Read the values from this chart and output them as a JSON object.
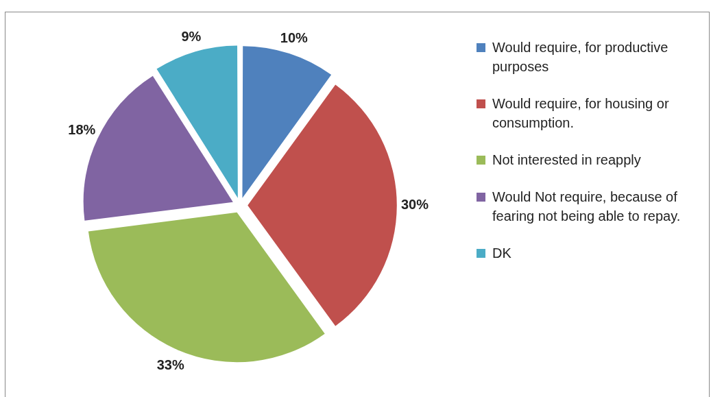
{
  "chart_data": {
    "type": "pie",
    "categories": [
      "Would require, for productive purposes",
      "Would require, for housing or consumption.",
      "Not interested in reapply",
      "Would Not require, because of fearing not being able to repay.",
      "DK"
    ],
    "values": [
      10,
      30,
      33,
      18,
      9
    ],
    "colors": [
      "#4f81bd",
      "#c0504d",
      "#9bbb59",
      "#8064a2",
      "#4bacc6"
    ],
    "value_labels": [
      "10%",
      "30%",
      "33%",
      "18%",
      "9%"
    ],
    "legend": "right"
  }
}
